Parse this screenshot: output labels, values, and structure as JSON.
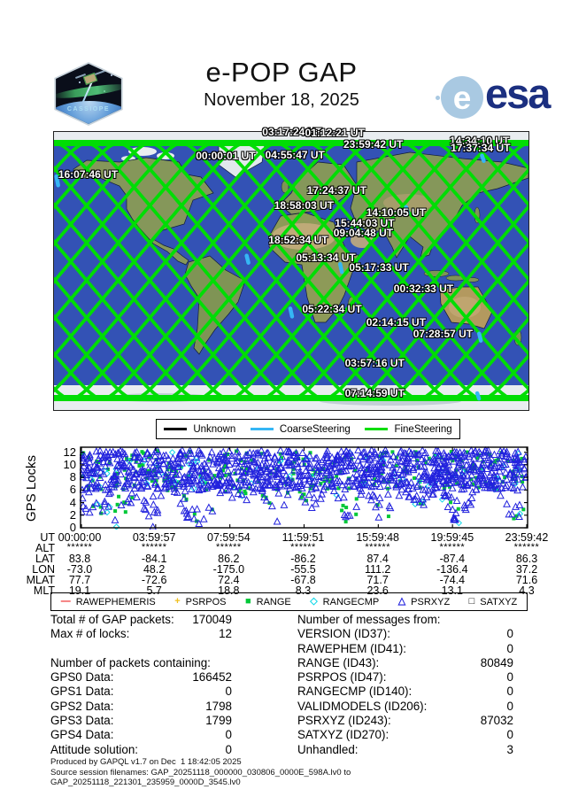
{
  "header": {
    "title": "e-POP GAP",
    "date": "November 18, 2025",
    "patch_label": "CASSIOPE",
    "esa_word": "esa",
    "esa_globe_letter": "e",
    "esa_blue": "#1b2f80"
  },
  "map_colors": {
    "ocean": "#3352b5",
    "land": "#85975a",
    "desert": "#c3ac7c",
    "polar": "#e9edf0",
    "track_fine": "#00dd05",
    "track_coarse": "#35b6f5",
    "track_unknown": "#000000"
  },
  "stats": {
    "left": [
      {
        "label": "Total # of GAP packets:",
        "value": "170049"
      },
      {
        "label": "Max # of locks:",
        "value": "12"
      },
      {
        "label": "",
        "value": ""
      },
      {
        "label": "Number of packets containing:",
        "value": ""
      },
      {
        "label": "GPS0 Data:",
        "value": "166452"
      },
      {
        "label": "GPS1 Data:",
        "value": "0"
      },
      {
        "label": "GPS2 Data:",
        "value": "1798"
      },
      {
        "label": "GPS3 Data:",
        "value": "1799"
      },
      {
        "label": "GPS4 Data:",
        "value": "0"
      },
      {
        "label": "Attitude solution:",
        "value": "0"
      }
    ],
    "right": [
      {
        "label": "Number of messages from:",
        "value": ""
      },
      {
        "label": "VERSION (ID37):",
        "value": "0"
      },
      {
        "label": "RAWEPHEM (ID41):",
        "value": "0"
      },
      {
        "label": "RANGE (ID43):",
        "value": "80849"
      },
      {
        "label": "PSRPOS (ID47):",
        "value": "0"
      },
      {
        "label": "RANGECMP (ID140):",
        "value": "0"
      },
      {
        "label": "VALIDMODELS (ID206):",
        "value": "0"
      },
      {
        "label": "PSRXYZ (ID243):",
        "value": "87032"
      },
      {
        "label": "SATXYZ (ID270):",
        "value": "0"
      },
      {
        "label": "Unhandled:",
        "value": "3"
      }
    ]
  },
  "footer": {
    "line1": "Produced by GAPQL v1.7 on Dec  1 18:42:05 2025",
    "line2": "Source session filenames: GAP_20251118_000000_030806_0000E_598A.lv0 to",
    "line3": "GAP_20251118_221301_235959_0000D_3545.lv0"
  },
  "chart_data": [
    {
      "type": "line",
      "title": "Satellite ground-track world map (equirectangular)",
      "legend_position": "below-map",
      "legend": [
        {
          "label": "Unknown",
          "color": "#000000"
        },
        {
          "label": "CoarseSteering",
          "color": "#35b6f5"
        },
        {
          "label": "FineSteering",
          "color": "#00dd05"
        }
      ],
      "orbits_per_day": 15,
      "max_latitude_deg": 81,
      "time_labels": [
        {
          "text": "03:17:24 UT",
          "x": 43.9,
          "y": -2.2
        },
        {
          "text": "01:12:21 UT",
          "x": 52.9,
          "y": -1.8
        },
        {
          "text": "23:59:42 UT",
          "x": 61.0,
          "y": 2.2
        },
        {
          "text": "14:34:10 UT",
          "x": 83.4,
          "y": 0.8
        },
        {
          "text": "17:37:34 UT",
          "x": 83.6,
          "y": 3.6
        },
        {
          "text": "00:00:01 UT",
          "x": 29.9,
          "y": 6.5
        },
        {
          "text": "04:55:47 UT",
          "x": 44.5,
          "y": 6.0
        },
        {
          "text": "16:07:46 UT",
          "x": 0.9,
          "y": 13.2
        },
        {
          "text": "17:24:37 UT",
          "x": 53.3,
          "y": 18.8
        },
        {
          "text": "18:58:03 UT",
          "x": 46.4,
          "y": 24.2
        },
        {
          "text": "14:10:05 UT",
          "x": 65.8,
          "y": 26.8
        },
        {
          "text": "15:44:03 UT",
          "x": 59.2,
          "y": 30.6
        },
        {
          "text": "09:04:48 UT",
          "x": 58.9,
          "y": 34.0
        },
        {
          "text": "18:52:34 UT",
          "x": 45.2,
          "y": 36.6
        },
        {
          "text": "05:13:34 UT",
          "x": 51.0,
          "y": 43.0
        },
        {
          "text": "05:17:33 UT",
          "x": 62.2,
          "y": 46.6
        },
        {
          "text": "00:32:33 UT",
          "x": 71.6,
          "y": 54.0
        },
        {
          "text": "05:22:34 UT",
          "x": 52.3,
          "y": 61.4
        },
        {
          "text": "02:14:15 UT",
          "x": 65.8,
          "y": 66.4
        },
        {
          "text": "07:28:57 UT",
          "x": 75.7,
          "y": 70.4
        },
        {
          "text": "03:57:16 UT",
          "x": 61.3,
          "y": 81.0
        },
        {
          "text": "07:14:59 UT",
          "x": 61.3,
          "y": 91.6
        }
      ],
      "coarse_segments": [
        {
          "x": 0.5,
          "y": 16.0,
          "len": 10
        },
        {
          "x": 40.6,
          "y": 44.5,
          "len": 8
        },
        {
          "x": 60.3,
          "y": 47.5,
          "len": 9
        },
        {
          "x": 49.8,
          "y": 63.5,
          "len": 9
        },
        {
          "x": 89.6,
          "y": 72.5,
          "len": 8
        },
        {
          "x": 74.2,
          "y": 27.0,
          "len": 7
        },
        {
          "x": 90.2,
          "y": 8.5,
          "len": 6
        },
        {
          "x": 89.2,
          "y": 94.0,
          "len": 6
        }
      ]
    },
    {
      "type": "scatter",
      "ylabel": "GPS Locks",
      "ylim": [
        0,
        12.8
      ],
      "yticks": [
        0,
        2,
        4,
        6,
        8,
        10,
        12
      ],
      "grid": false,
      "legend_position": "bottom-box",
      "tick_rows": [
        {
          "label": "UT",
          "values": [
            "00:00:00",
            "03:59:57",
            "07:59:54",
            "11:59:51",
            "15:59:48",
            "19:59:45",
            "23:59:42"
          ]
        },
        {
          "label": "ALT",
          "values": [
            "******",
            "******",
            "******",
            "******",
            "******",
            "******",
            "******"
          ]
        },
        {
          "label": "LAT",
          "values": [
            "83.8",
            "-84.1",
            "86.2",
            "-86.2",
            "87.4",
            "-87.4",
            "86.3"
          ]
        },
        {
          "label": "LON",
          "values": [
            "-73.0",
            "48.2",
            "-175.0",
            "-55.5",
            "111.2",
            "-136.4",
            "37.2"
          ]
        },
        {
          "label": "MLAT",
          "values": [
            "77.7",
            "-72.6",
            "72.4",
            "-67.8",
            "71.7",
            "-74.4",
            "71.6"
          ]
        },
        {
          "label": "MLT",
          "values": [
            "19.1",
            "5.7",
            "18.8",
            "8.3",
            "23.6",
            "13.1",
            "4.3"
          ]
        }
      ],
      "series": [
        {
          "name": "RAWEPHEMERIS",
          "marker": "dash",
          "color": "#ee2222",
          "message_count": 0
        },
        {
          "name": "PSRPOS",
          "marker": "plus",
          "color": "#f0c020",
          "message_count": 0
        },
        {
          "name": "RANGE",
          "marker": "square-filled",
          "color": "#00c838",
          "message_count": 80849
        },
        {
          "name": "RANGECMP",
          "marker": "diamond",
          "color": "#10d8e8",
          "message_count": 0
        },
        {
          "name": "PSRXYZ",
          "marker": "triangle",
          "color": "#2222dd",
          "message_count": 87032
        },
        {
          "name": "SATXYZ",
          "marker": "square-open",
          "color": "#000000",
          "message_count": 0
        }
      ],
      "dominant_band": [
        6,
        12
      ],
      "band_envelope": {
        "x_frac": [
          0,
          4,
          8,
          12,
          16,
          20,
          24,
          28,
          32,
          36,
          40,
          44,
          48,
          52,
          56,
          60,
          64,
          68,
          72,
          76,
          80,
          84,
          88,
          92,
          96,
          100
        ],
        "min_locks": [
          0,
          2,
          0,
          5,
          0,
          6,
          1,
          0,
          6,
          3,
          6,
          0,
          6,
          2,
          6,
          0,
          5,
          0,
          6,
          2,
          6,
          0,
          4,
          6,
          2,
          0
        ],
        "max_locks": 12
      }
    }
  ]
}
